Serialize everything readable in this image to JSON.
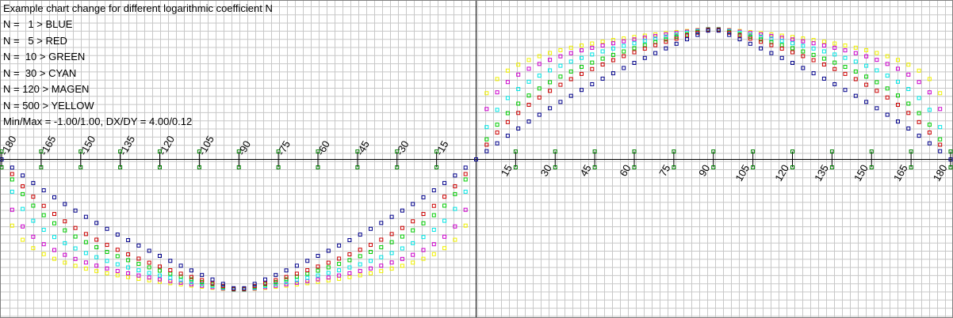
{
  "chart_data": {
    "type": "scatter",
    "title": "Example chart change for different logarithmic coefficient N",
    "legend": [
      {
        "n": 1,
        "label": "N =   1 > BLUE",
        "color": "#00008b"
      },
      {
        "n": 5,
        "label": "N =   5 > RED",
        "color": "#cc0000"
      },
      {
        "n": 10,
        "label": "N =  10 > GREEN",
        "color": "#00cc00"
      },
      {
        "n": 30,
        "label": "N =  30 > CYAN",
        "color": "#00e5e5"
      },
      {
        "n": 120,
        "label": "N = 120 > MAGEN",
        "color": "#cc00cc"
      },
      {
        "n": 500,
        "label": "N = 500 > YELLOW",
        "color": "#f0f000"
      }
    ],
    "stats_text": "Min/Max = -1.00/1.00, DX/DY = 4.00/0.12",
    "xlim": [
      -180,
      180
    ],
    "ylim": [
      -1,
      1
    ],
    "dx": 4,
    "x_ticks": [
      -180,
      -165,
      -150,
      -135,
      -120,
      -105,
      -90,
      -75,
      -60,
      -45,
      -30,
      -15,
      15,
      30,
      45,
      60,
      75,
      90,
      105,
      120,
      135,
      150,
      165,
      180
    ],
    "grid": true,
    "axis_marker_color": "#008000",
    "grid_color": "#c8c8c8"
  }
}
